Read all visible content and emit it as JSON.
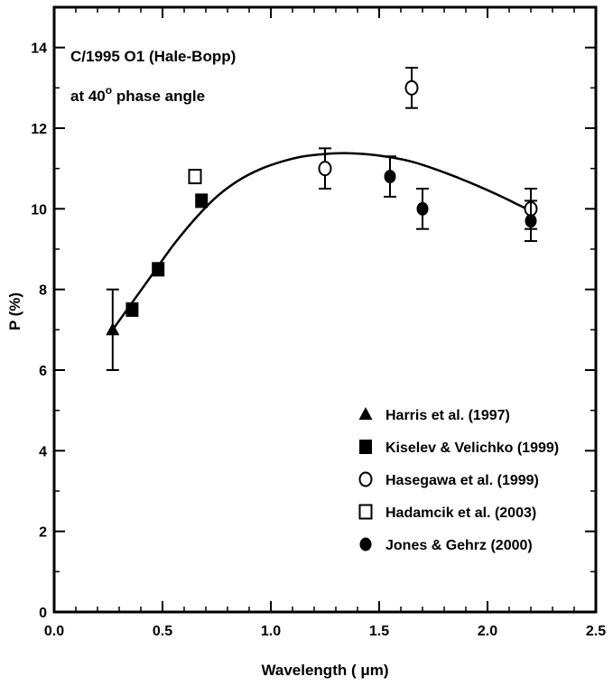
{
  "chart_data": {
    "type": "scatter",
    "title": "",
    "annotations": {
      "object_label": "C/1995 O1 (Hale-Bopp)",
      "phase_prefix": "at 40",
      "phase_degree": "o",
      "phase_suffix": " phase angle"
    },
    "xlabel": "Wavelength ( μm)",
    "ylabel": "P (%)",
    "xlim": [
      0.0,
      2.5
    ],
    "ylim": [
      0,
      15
    ],
    "x_ticks": [
      "0.0",
      "0.5",
      "1.0",
      "1.5",
      "2.0",
      "2.5"
    ],
    "y_ticks": [
      "0",
      "2",
      "4",
      "6",
      "8",
      "10",
      "12",
      "14"
    ],
    "grid": false,
    "legend_position": "bottom-right",
    "series": [
      {
        "name": "Harris et al. (1997)",
        "marker": "filled-triangle",
        "points": [
          {
            "x": 0.27,
            "y": 7.0,
            "err": 1.0
          }
        ]
      },
      {
        "name": "Kiselev & Velichko (1999)",
        "marker": "filled-square",
        "points": [
          {
            "x": 0.36,
            "y": 7.5
          },
          {
            "x": 0.48,
            "y": 8.5
          },
          {
            "x": 0.68,
            "y": 10.2
          }
        ]
      },
      {
        "name": "Hasegawa et al. (1999)",
        "marker": "open-circle",
        "points": [
          {
            "x": 1.25,
            "y": 11.0,
            "err": 0.5
          },
          {
            "x": 1.65,
            "y": 13.0,
            "err": 0.5
          },
          {
            "x": 2.2,
            "y": 10.0,
            "err": 0.5
          }
        ]
      },
      {
        "name": "Hadamcik et al. (2003)",
        "marker": "open-square",
        "points": [
          {
            "x": 0.65,
            "y": 10.8
          }
        ]
      },
      {
        "name": "Jones & Gehrz (2000)",
        "marker": "filled-circle",
        "points": [
          {
            "x": 1.55,
            "y": 10.8,
            "err": 0.5
          },
          {
            "x": 1.7,
            "y": 10.0,
            "err": 0.5
          },
          {
            "x": 2.2,
            "y": 9.7,
            "err": 0.5
          }
        ]
      }
    ],
    "fit_curve": {
      "x": [
        0.27,
        0.35,
        0.45,
        0.55,
        0.65,
        0.75,
        0.85,
        0.95,
        1.05,
        1.15,
        1.25,
        1.35,
        1.45,
        1.55,
        1.65,
        1.75,
        1.85,
        1.95,
        2.05,
        2.15,
        2.2
      ],
      "y": [
        7.0,
        7.6,
        8.35,
        9.1,
        9.75,
        10.3,
        10.7,
        10.98,
        11.17,
        11.3,
        11.36,
        11.38,
        11.35,
        11.28,
        11.17,
        11.0,
        10.8,
        10.58,
        10.34,
        10.08,
        9.95
      ]
    }
  }
}
